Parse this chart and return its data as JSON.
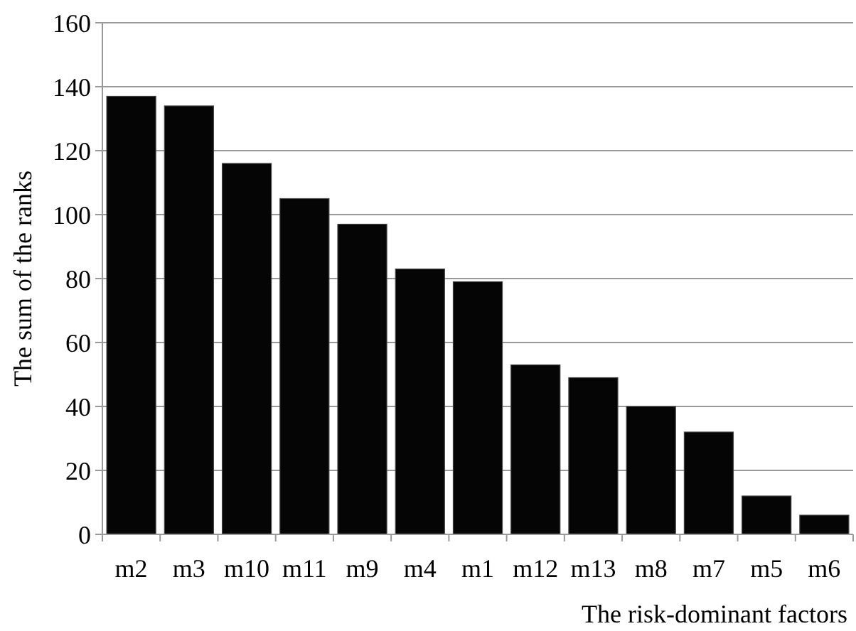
{
  "chart_data": {
    "type": "bar",
    "xlabel": "The risk-dominant factors",
    "ylabel": "The sum of the ranks",
    "categories": [
      "m2",
      "m3",
      "m10",
      "m11",
      "m9",
      "m4",
      "m1",
      "m12",
      "m13",
      "m8",
      "m7",
      "m5",
      "m6"
    ],
    "values": [
      137,
      134,
      116,
      105,
      97,
      83,
      79,
      53,
      49,
      40,
      32,
      12,
      6
    ],
    "color": "#050505",
    "ylim": [
      0,
      160
    ],
    "yticks": [
      0,
      20,
      40,
      60,
      80,
      100,
      120,
      140,
      160
    ],
    "grid": "y"
  }
}
